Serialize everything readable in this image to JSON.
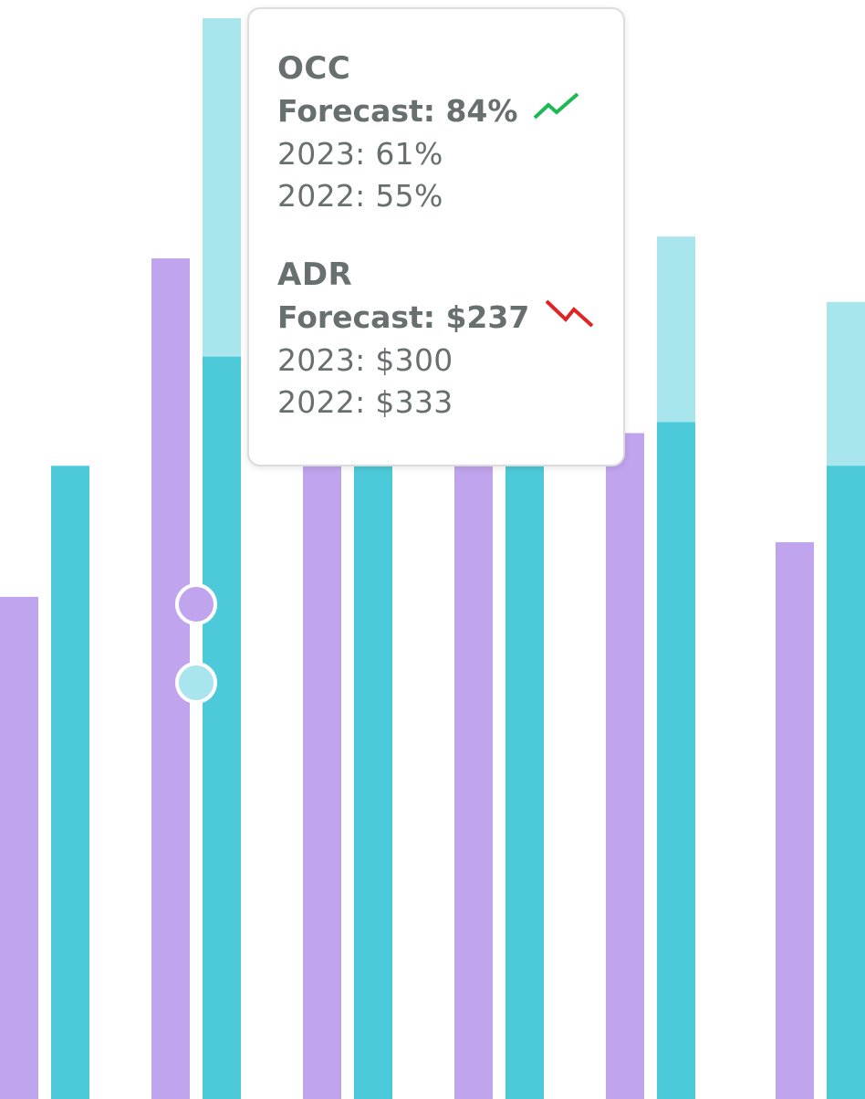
{
  "chart_data": {
    "type": "bar",
    "categories": [
      "",
      "",
      "",
      "",
      "",
      ""
    ],
    "series": [
      {
        "values": [
          46,
          77,
          58,
          58,
          61,
          51
        ]
      },
      {
        "values": [
          58,
          68,
          58,
          58,
          62,
          58
        ]
      },
      {
        "values": [
          null,
          99,
          null,
          null,
          79,
          73
        ]
      }
    ],
    "ylim": [
      0,
      100
    ],
    "grid": false,
    "selected_index": 1,
    "colors": {
      "series_a": "#c0a4ee",
      "series_b": "#4ccad9",
      "series_b_light": "#a8e5ec",
      "marker_stroke": "#ffffff",
      "trend_up": "#1db954",
      "trend_down": "#e02424"
    }
  },
  "tooltip": {
    "occ": {
      "title": "OCC",
      "forecast": "Forecast: 84%",
      "trend": "trend-up-icon",
      "line_2023": "2023: 61%",
      "line_2022": "2022: 55%"
    },
    "adr": {
      "title": "ADR",
      "forecast": "Forecast: $237",
      "trend": "trend-down-icon",
      "line_2023": "2023: $300",
      "line_2022": "2022: $333"
    }
  }
}
